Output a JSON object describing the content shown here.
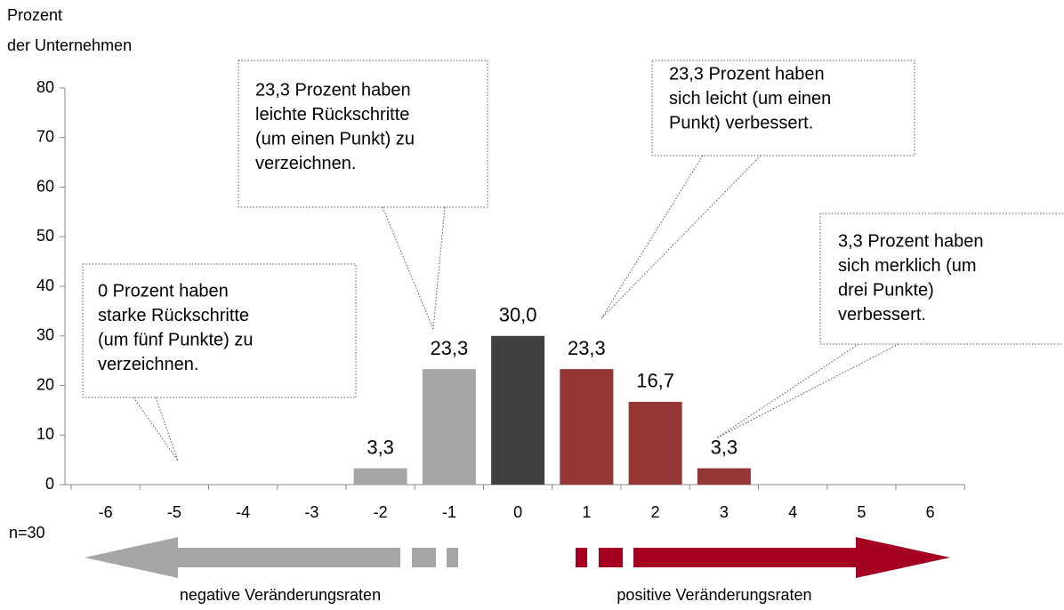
{
  "chart_data": {
    "type": "bar",
    "y_axis_label": [
      "Prozent",
      "der Unternehmen"
    ],
    "categories": [
      "-6",
      "-5",
      "-4",
      "-3",
      "-2",
      "-1",
      "0",
      "1",
      "2",
      "3",
      "4",
      "5",
      "6"
    ],
    "values": [
      0,
      0,
      0,
      0,
      3.3,
      23.3,
      30.0,
      23.3,
      16.7,
      3.3,
      0,
      0,
      0
    ],
    "value_labels": [
      null,
      null,
      null,
      null,
      "3,3",
      "23,3",
      "30,0",
      "23,3",
      "16,7",
      "3,3",
      null,
      null,
      null
    ],
    "colors": [
      "#a6a6a6",
      "#a6a6a6",
      "#a6a6a6",
      "#a6a6a6",
      "#a6a6a6",
      "#a6a6a6",
      "#404040",
      "#953735",
      "#953735",
      "#953735",
      "#953735",
      "#953735",
      "#953735"
    ],
    "ylim": [
      0,
      80
    ],
    "yticks": [
      0,
      10,
      20,
      30,
      40,
      50,
      60,
      70,
      80
    ],
    "annotations": [
      {
        "lines": [
          "0 Prozent haben",
          "starke Rückschritte",
          "(um fünf Punkte) zu",
          "verzeichnen."
        ]
      },
      {
        "lines": [
          "23,3 Prozent haben",
          "leichte Rückschritte",
          "(um einen Punkt) zu",
          "verzeichnen."
        ]
      },
      {
        "lines": [
          "23,3 Prozent haben",
          "sich leicht (um einen",
          "Punkt) verbessert."
        ]
      },
      {
        "lines": [
          "3,3 Prozent haben",
          "sich merklich (um",
          "drei Punkte)",
          "verbessert."
        ]
      }
    ],
    "note": "n=30",
    "negative_label": "negative Veränderungsraten",
    "positive_label": "positive Veränderungsraten"
  }
}
